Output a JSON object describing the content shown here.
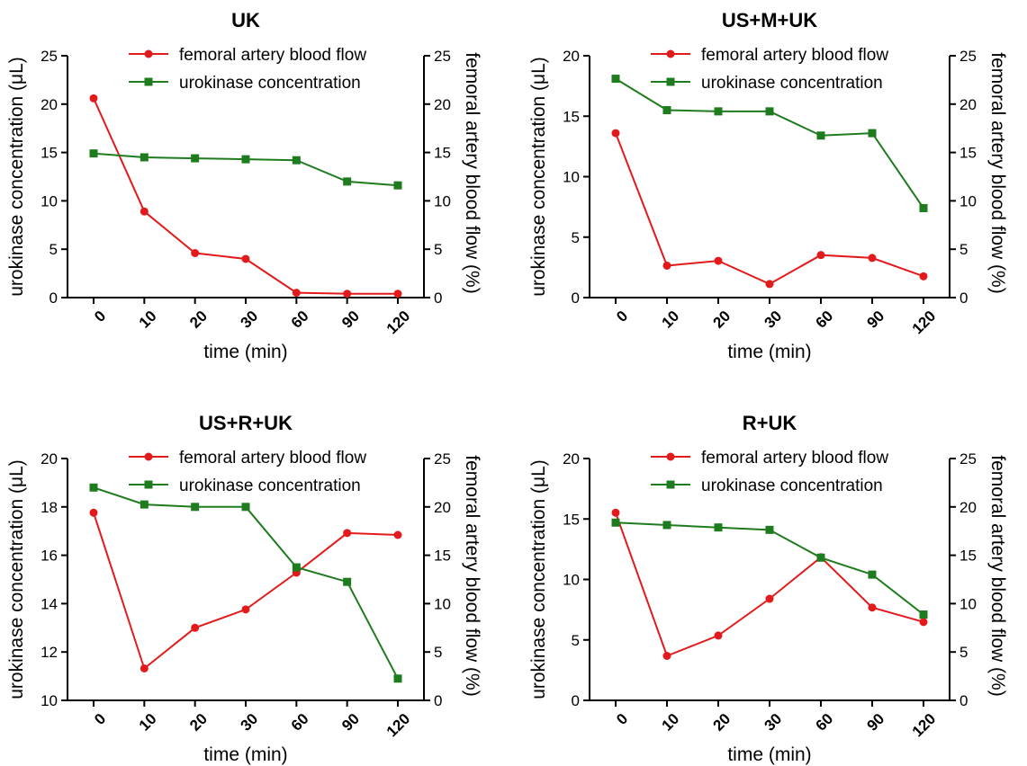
{
  "colors": {
    "red": "#e31a1c",
    "green": "#1e7b1e",
    "axis": "#000000"
  },
  "legend_labels": {
    "red": "femoral artery blood flow",
    "green": "urokinase concentration"
  },
  "chart_data": [
    {
      "type": "line",
      "title": "UK",
      "categories": [
        "0",
        "10",
        "20",
        "30",
        "60",
        "90",
        "120"
      ],
      "xlabel": "time (min)",
      "ylabel_left": "urokinase concentration (μL)",
      "ylabel_right": "femoral artery blood flow (%)",
      "left_ylim": [
        0,
        25
      ],
      "left_ticks": [
        0,
        5,
        10,
        15,
        20,
        25
      ],
      "right_ylim": [
        0,
        25
      ],
      "right_ticks": [
        0,
        5,
        10,
        15,
        20,
        25
      ],
      "legend": "top-center",
      "series": [
        {
          "name": "femoral artery blood flow",
          "axis": "right",
          "marker": "circle",
          "color": "#e31a1c",
          "values": [
            20.6,
            8.9,
            4.6,
            4.0,
            0.5,
            0.4,
            0.4
          ]
        },
        {
          "name": "urokinase concentration",
          "axis": "left",
          "marker": "square",
          "color": "#1e7b1e",
          "values": [
            14.9,
            14.5,
            14.4,
            14.3,
            14.2,
            12.0,
            11.6
          ]
        }
      ]
    },
    {
      "type": "line",
      "title": "US+M+UK",
      "categories": [
        "0",
        "10",
        "20",
        "30",
        "60",
        "90",
        "120"
      ],
      "xlabel": "time (min)",
      "ylabel_left": "urokinase concentration (μL)",
      "ylabel_right": "femoral artery blood flow (%)",
      "left_ylim": [
        0,
        20
      ],
      "left_ticks": [
        0,
        5,
        10,
        15,
        20
      ],
      "right_ylim": [
        0,
        25
      ],
      "right_ticks": [
        0,
        5,
        10,
        15,
        20,
        25
      ],
      "legend": "top-center",
      "series": [
        {
          "name": "femoral artery blood flow",
          "axis": "right",
          "marker": "circle",
          "color": "#e31a1c",
          "values": [
            17.0,
            3.3,
            3.8,
            1.4,
            4.4,
            4.1,
            2.2
          ]
        },
        {
          "name": "urokinase concentration",
          "axis": "left",
          "marker": "square",
          "color": "#1e7b1e",
          "values": [
            18.1,
            15.5,
            15.4,
            15.4,
            13.4,
            13.6,
            7.4
          ]
        }
      ]
    },
    {
      "type": "line",
      "title": "US+R+UK",
      "categories": [
        "0",
        "10",
        "20",
        "30",
        "60",
        "90",
        "120"
      ],
      "xlabel": "time (min)",
      "ylabel_left": "urokinase concentration (μL)",
      "ylabel_right": "femoral artery blood flow (%)",
      "left_ylim": [
        10,
        20
      ],
      "left_ticks": [
        10,
        12,
        14,
        16,
        18,
        20
      ],
      "right_ylim": [
        0,
        25
      ],
      "right_ticks": [
        0,
        5,
        10,
        15,
        20,
        25
      ],
      "legend": "top-center",
      "series": [
        {
          "name": "femoral artery blood flow",
          "axis": "right",
          "marker": "circle",
          "color": "#e31a1c",
          "values": [
            19.4,
            3.3,
            7.5,
            9.4,
            13.2,
            17.3,
            17.1
          ]
        },
        {
          "name": "urokinase concentration",
          "axis": "left",
          "marker": "square",
          "color": "#1e7b1e",
          "values": [
            18.8,
            18.1,
            18.0,
            18.0,
            15.5,
            14.9,
            10.9
          ]
        }
      ]
    },
    {
      "type": "line",
      "title": "R+UK",
      "categories": [
        "0",
        "10",
        "20",
        "30",
        "60",
        "90",
        "120"
      ],
      "xlabel": "time (min)",
      "ylabel_left": "urokinase concentration (μL)",
      "ylabel_right": "femoral artery blood flow (%)",
      "left_ylim": [
        0,
        20
      ],
      "left_ticks": [
        0,
        5,
        10,
        15,
        20
      ],
      "right_ylim": [
        0,
        25
      ],
      "right_ticks": [
        0,
        5,
        10,
        15,
        20,
        25
      ],
      "legend": "top-center",
      "series": [
        {
          "name": "femoral artery blood flow",
          "axis": "right",
          "marker": "circle",
          "color": "#e31a1c",
          "values": [
            19.4,
            4.6,
            6.7,
            10.5,
            14.8,
            9.6,
            8.1
          ]
        },
        {
          "name": "urokinase concentration",
          "axis": "left",
          "marker": "square",
          "color": "#1e7b1e",
          "values": [
            14.7,
            14.5,
            14.3,
            14.1,
            11.8,
            10.4,
            7.1
          ]
        }
      ]
    }
  ]
}
